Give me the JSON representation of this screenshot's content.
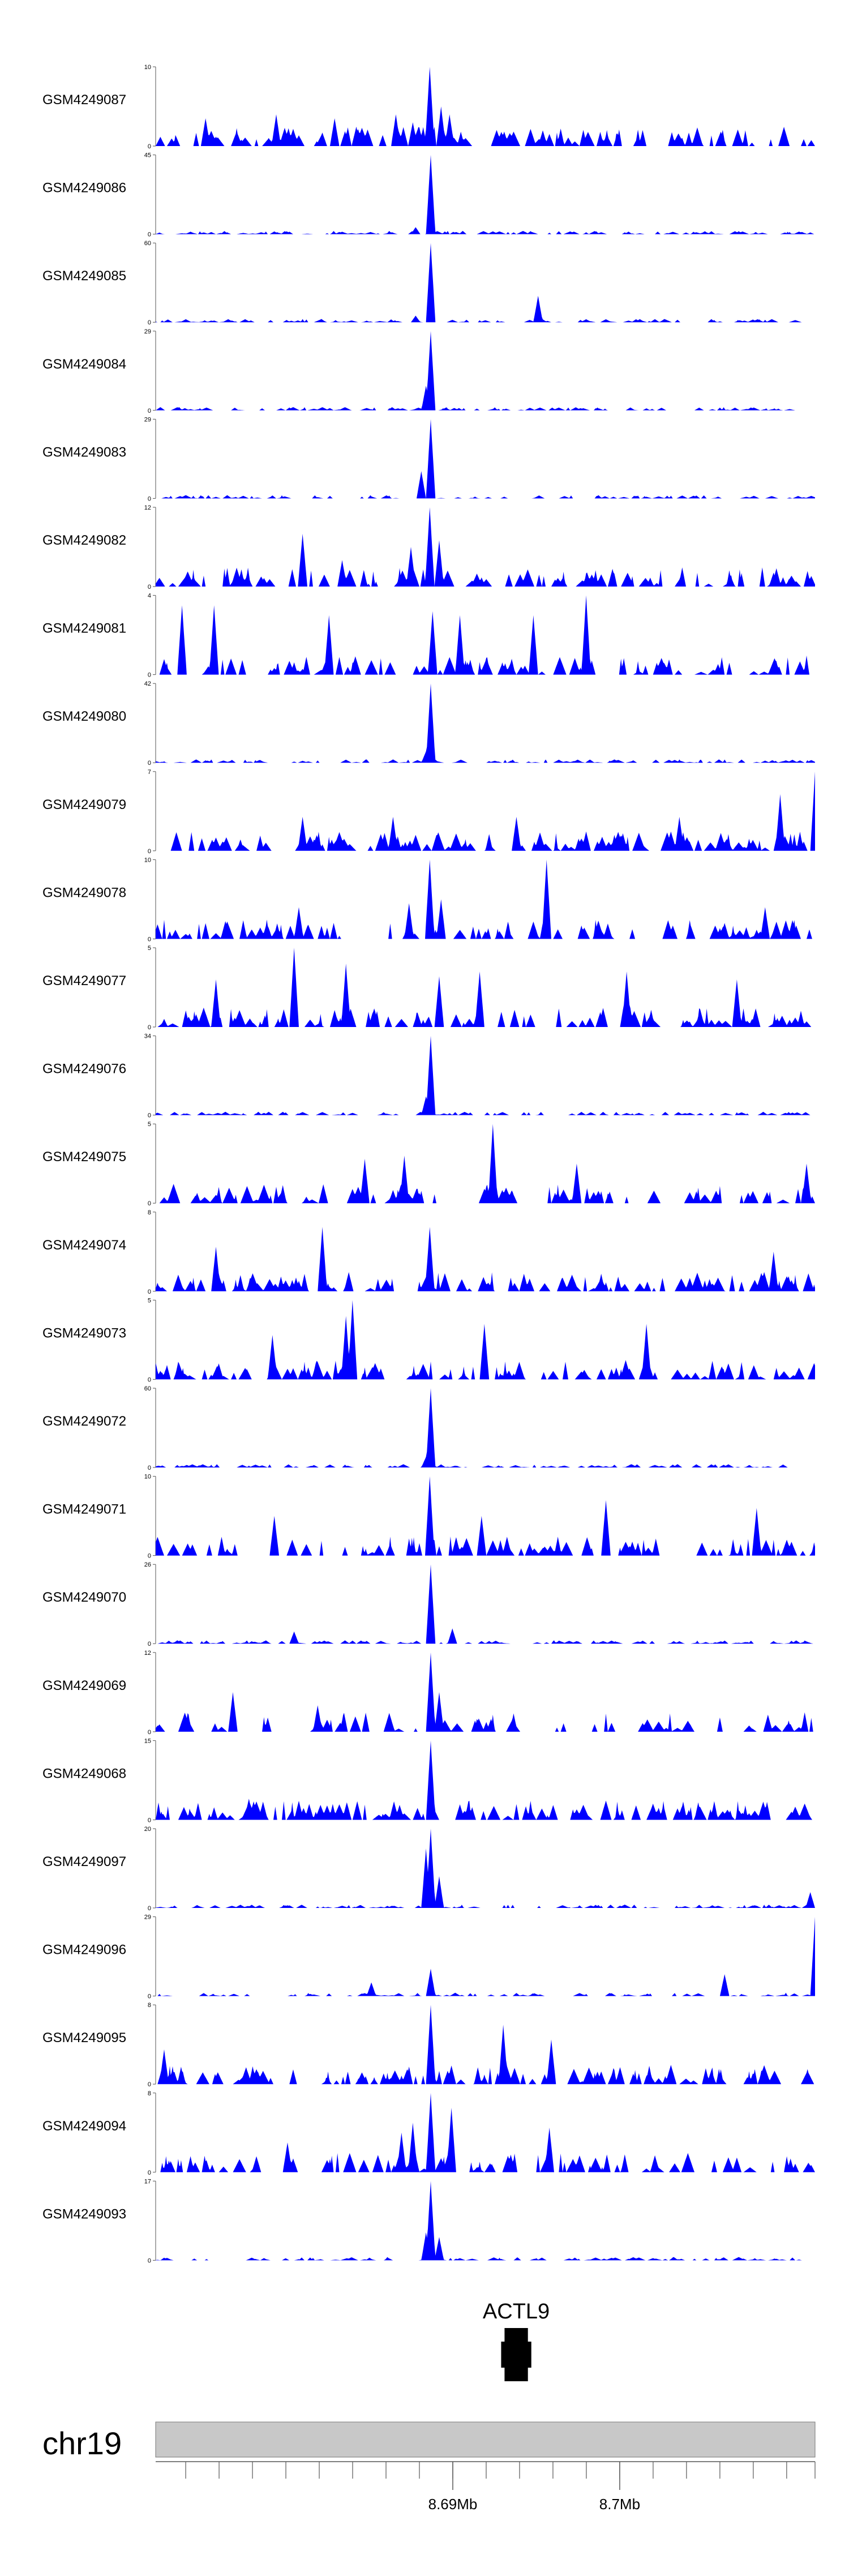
{
  "chart_data": {
    "type": "area",
    "title": "",
    "fill_color": "#0000ff",
    "x_range_mb": [
      8.6722,
      8.7117
    ],
    "tracks": [
      {
        "name": "GSM4249087",
        "ymax": 10,
        "ymin": 0,
        "peaks": [
          [
            8.6886,
            10
          ],
          [
            8.6794,
            4
          ],
          [
            8.6893,
            5
          ],
          [
            8.6898,
            4
          ],
          [
            8.6866,
            4
          ],
          [
            8.6752,
            3.5
          ],
          [
            8.6829,
            3.5
          ],
          [
            8.6876,
            3
          ]
        ]
      },
      {
        "name": "GSM4249086",
        "ymax": 45,
        "ymin": 0,
        "peaks": [
          [
            8.6887,
            45
          ],
          [
            8.6878,
            4
          ]
        ]
      },
      {
        "name": "GSM4249085",
        "ymax": 60,
        "ymin": 0,
        "peaks": [
          [
            8.6887,
            60
          ],
          [
            8.6951,
            20
          ],
          [
            8.6878,
            5
          ]
        ]
      },
      {
        "name": "GSM4249084",
        "ymax": 29,
        "ymin": 0,
        "peaks": [
          [
            8.6887,
            29
          ],
          [
            8.6884,
            9
          ]
        ]
      },
      {
        "name": "GSM4249083",
        "ymax": 29,
        "ymin": 0,
        "peaks": [
          [
            8.6887,
            29
          ],
          [
            8.6881,
            10
          ]
        ]
      },
      {
        "name": "GSM4249082",
        "ymax": 12,
        "ymin": 0,
        "peaks": [
          [
            8.6886,
            12
          ],
          [
            8.681,
            8
          ],
          [
            8.6892,
            7
          ],
          [
            8.6875,
            6
          ],
          [
            8.6834,
            4
          ]
        ]
      },
      {
        "name": "GSM4249081",
        "ymax": 4,
        "ymin": 0,
        "peaks": [
          [
            8.698,
            4
          ],
          [
            8.6738,
            3.5
          ],
          [
            8.6757,
            3.5
          ],
          [
            8.6826,
            3
          ],
          [
            8.6888,
            3.2
          ],
          [
            8.6904,
            3
          ],
          [
            8.6948,
            3
          ]
        ]
      },
      {
        "name": "GSM4249080",
        "ymax": 42,
        "ymin": 0,
        "peaks": [
          [
            8.6887,
            42
          ],
          [
            8.6884,
            6
          ]
        ]
      },
      {
        "name": "GSM4249079",
        "ymax": 7,
        "ymin": 0,
        "peaks": [
          [
            8.7117,
            7
          ],
          [
            8.7096,
            5
          ],
          [
            8.681,
            3
          ],
          [
            8.6864,
            3
          ],
          [
            8.6938,
            3
          ],
          [
            8.7036,
            3
          ]
        ]
      },
      {
        "name": "GSM4249078",
        "ymax": 10,
        "ymin": 0,
        "peaks": [
          [
            8.6886,
            10
          ],
          [
            8.6956,
            10
          ],
          [
            8.6893,
            5
          ],
          [
            8.6874,
            4.5
          ],
          [
            8.6808,
            4
          ],
          [
            8.7087,
            4
          ]
        ]
      },
      {
        "name": "GSM4249077",
        "ymax": 5,
        "ymin": 0,
        "peaks": [
          [
            8.6805,
            5
          ],
          [
            8.6836,
            4
          ],
          [
            8.6916,
            3.5
          ],
          [
            8.7004,
            3.5
          ],
          [
            8.6892,
            3.2
          ],
          [
            8.6758,
            3
          ],
          [
            8.707,
            3
          ]
        ]
      },
      {
        "name": "GSM4249076",
        "ymax": 34,
        "ymin": 0,
        "peaks": [
          [
            8.6887,
            34
          ],
          [
            8.6884,
            8
          ]
        ]
      },
      {
        "name": "GSM4249075",
        "ymax": 5,
        "ymin": 0,
        "peaks": [
          [
            8.6924,
            5
          ],
          [
            8.6871,
            3
          ],
          [
            8.6847,
            2.8
          ],
          [
            8.6974,
            2.5
          ],
          [
            8.7112,
            2.5
          ]
        ]
      },
      {
        "name": "GSM4249074",
        "ymax": 8,
        "ymin": 0,
        "peaks": [
          [
            8.6822,
            6.5
          ],
          [
            8.6886,
            6.5
          ],
          [
            8.7092,
            4
          ],
          [
            8.6758,
            4.5
          ]
        ]
      },
      {
        "name": "GSM4249073",
        "ymax": 5,
        "ymin": 0,
        "peaks": [
          [
            8.684,
            5
          ],
          [
            8.6836,
            4
          ],
          [
            8.7016,
            3.5
          ],
          [
            8.6919,
            3.5
          ],
          [
            8.6792,
            2.8
          ]
        ]
      },
      {
        "name": "GSM4249072",
        "ymax": 60,
        "ymin": 0,
        "peaks": [
          [
            8.6887,
            60
          ],
          [
            8.6884,
            8
          ]
        ]
      },
      {
        "name": "GSM4249071",
        "ymax": 10,
        "ymin": 0,
        "peaks": [
          [
            8.6886,
            10
          ],
          [
            8.6992,
            7
          ],
          [
            8.7082,
            6
          ],
          [
            8.6793,
            5
          ],
          [
            8.6917,
            5
          ]
        ]
      },
      {
        "name": "GSM4249070",
        "ymax": 26,
        "ymin": 0,
        "peaks": [
          [
            8.6887,
            26
          ],
          [
            8.69,
            5
          ],
          [
            8.6805,
            4
          ]
        ]
      },
      {
        "name": "GSM4249069",
        "ymax": 12,
        "ymin": 0,
        "peaks": [
          [
            8.6887,
            12
          ],
          [
            8.6768,
            6
          ],
          [
            8.6892,
            6
          ],
          [
            8.6819,
            4
          ]
        ]
      },
      {
        "name": "GSM4249068",
        "ymax": 15,
        "ymin": 0,
        "peaks": [
          [
            8.6887,
            15
          ],
          [
            8.6778,
            4
          ],
          [
            8.6814,
            3
          ]
        ]
      },
      {
        "name": "GSM4249097",
        "ymax": 20,
        "ymin": 0,
        "peaks": [
          [
            8.6887,
            20
          ],
          [
            8.6884,
            15
          ],
          [
            8.6892,
            8
          ],
          [
            8.7114,
            4
          ]
        ]
      },
      {
        "name": "GSM4249096",
        "ymax": 29,
        "ymin": 0,
        "peaks": [
          [
            8.7117,
            29
          ],
          [
            8.6887,
            10
          ],
          [
            8.7063,
            8
          ],
          [
            8.6851,
            5
          ]
        ]
      },
      {
        "name": "GSM4249095",
        "ymax": 8,
        "ymin": 0,
        "peaks": [
          [
            8.6887,
            8
          ],
          [
            8.693,
            6
          ],
          [
            8.6959,
            4.5
          ],
          [
            8.6727,
            3.5
          ]
        ]
      },
      {
        "name": "GSM4249094",
        "ymax": 8,
        "ymin": 0,
        "peaks": [
          [
            8.6887,
            8
          ],
          [
            8.6899,
            6.5
          ],
          [
            8.6876,
            5
          ],
          [
            8.6869,
            4
          ],
          [
            8.6958,
            4.5
          ],
          [
            8.6801,
            3
          ]
        ]
      },
      {
        "name": "GSM4249093",
        "ymax": 17,
        "ymin": 0,
        "peaks": [
          [
            8.6887,
            17
          ],
          [
            8.6884,
            6
          ],
          [
            8.6892,
            5
          ]
        ]
      }
    ],
    "gene": {
      "name": "ACTL9",
      "start_mb": 8.6931,
      "end_mb": 8.6945
    },
    "chromosome": "chr19",
    "axis_ticks": [
      {
        "value_mb": 8.69,
        "label": "8.69Mb"
      },
      {
        "value_mb": 8.7,
        "label": "8.7Mb"
      }
    ],
    "minor_tick_step_mb": 0.002
  }
}
